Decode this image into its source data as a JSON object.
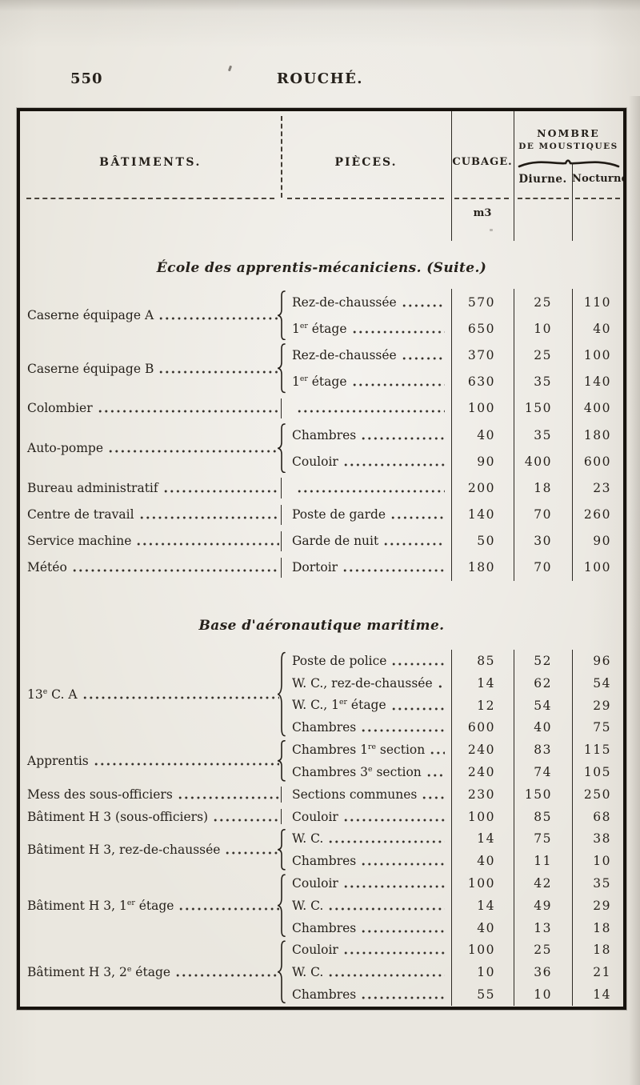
{
  "page": {
    "number": "550",
    "running_title": "ROUCHÉ."
  },
  "colors": {
    "ink": "#26211b",
    "paper": "#e8e5dd",
    "rule": "#2e2a24"
  },
  "table": {
    "headers": {
      "batiments": "BÂTIMENTS.",
      "pieces": "PIÈCES.",
      "cubage": "CUBAGE.",
      "cubage_unit": "m3",
      "nombre_line1": "NOMBRE",
      "nombre_line2": "DE MOUSTIQUES",
      "diurne": "Diurne.",
      "nocturne": "Nocturne."
    },
    "sections": [
      {
        "title": "École des apprentis-mécaniciens. (Suite.)",
        "groups": [
          {
            "batiment": "Caserne équipage A",
            "rows": [
              {
                "piece": "Rez-de-chaussée",
                "cubage": "570",
                "diurne": "25",
                "nocturne": "110"
              },
              {
                "piece": "1er étage",
                "cubage": "650",
                "diurne": "10",
                "nocturne": "40"
              }
            ]
          },
          {
            "batiment": "Caserne équipage B",
            "rows": [
              {
                "piece": "Rez-de-chaussée",
                "cubage": "370",
                "diurne": "25",
                "nocturne": "100"
              },
              {
                "piece": "1er étage",
                "cubage": "630",
                "diurne": "35",
                "nocturne": "140"
              }
            ]
          },
          {
            "batiment": "Colombier",
            "rows": [
              {
                "piece": "",
                "cubage": "100",
                "diurne": "150",
                "nocturne": "400"
              }
            ]
          },
          {
            "batiment": "Auto-pompe",
            "rows": [
              {
                "piece": "Chambres",
                "cubage": "40",
                "diurne": "35",
                "nocturne": "180"
              },
              {
                "piece": "Couloir",
                "cubage": "90",
                "diurne": "400",
                "nocturne": "600"
              }
            ]
          },
          {
            "batiment": "Bureau administratif",
            "rows": [
              {
                "piece": "",
                "cubage": "200",
                "diurne": "18",
                "nocturne": "23"
              }
            ]
          },
          {
            "batiment": "Centre de travail",
            "rows": [
              {
                "piece": "Poste de garde",
                "cubage": "140",
                "diurne": "70",
                "nocturne": "260"
              }
            ]
          },
          {
            "batiment": "Service machine",
            "rows": [
              {
                "piece": "Garde de nuit",
                "cubage": "50",
                "diurne": "30",
                "nocturne": "90"
              }
            ]
          },
          {
            "batiment": "Météo",
            "rows": [
              {
                "piece": "Dortoir",
                "cubage": "180",
                "diurne": "70",
                "nocturne": "100"
              }
            ]
          }
        ]
      },
      {
        "title": "Base d'aéronautique maritime.",
        "groups": [
          {
            "batiment": "13e C. A",
            "rows": [
              {
                "piece": "Poste de police",
                "cubage": "85",
                "diurne": "52",
                "nocturne": "96"
              },
              {
                "piece": "W. C., rez-de-chaussée",
                "cubage": "14",
                "diurne": "62",
                "nocturne": "54"
              },
              {
                "piece": "W. C., 1er étage",
                "cubage": "12",
                "diurne": "54",
                "nocturne": "29"
              },
              {
                "piece": "Chambres",
                "cubage": "600",
                "diurne": "40",
                "nocturne": "75"
              }
            ]
          },
          {
            "batiment": "Apprentis",
            "rows": [
              {
                "piece": "Chambres 1re section",
                "cubage": "240",
                "diurne": "83",
                "nocturne": "115"
              },
              {
                "piece": "Chambres 3e section",
                "cubage": "240",
                "diurne": "74",
                "nocturne": "105"
              }
            ]
          },
          {
            "batiment": "Mess des sous-officiers",
            "rows": [
              {
                "piece": "Sections communes",
                "cubage": "230",
                "diurne": "150",
                "nocturne": "250"
              }
            ]
          },
          {
            "batiment": "Bâtiment H 3 (sous-officiers)",
            "rows": [
              {
                "piece": "Couloir",
                "cubage": "100",
                "diurne": "85",
                "nocturne": "68"
              }
            ]
          },
          {
            "batiment": "Bâtiment H 3, rez-de-chaussée",
            "rows": [
              {
                "piece": "W. C.",
                "cubage": "14",
                "diurne": "75",
                "nocturne": "38"
              },
              {
                "piece": "Chambres",
                "cubage": "40",
                "diurne": "11",
                "nocturne": "10"
              }
            ]
          },
          {
            "batiment": "Bâtiment H 3, 1er étage",
            "rows": [
              {
                "piece": "Couloir",
                "cubage": "100",
                "diurne": "42",
                "nocturne": "35"
              },
              {
                "piece": "W. C.",
                "cubage": "14",
                "diurne": "49",
                "nocturne": "29"
              },
              {
                "piece": "Chambres",
                "cubage": "40",
                "diurne": "13",
                "nocturne": "18"
              }
            ]
          },
          {
            "batiment": "Bâtiment H 3, 2e étage",
            "rows": [
              {
                "piece": "Couloir",
                "cubage": "100",
                "diurne": "25",
                "nocturne": "18"
              },
              {
                "piece": "W. C.",
                "cubage": "10",
                "diurne": "36",
                "nocturne": "21"
              },
              {
                "piece": "Chambres",
                "cubage": "55",
                "diurne": "10",
                "nocturne": "14"
              }
            ]
          }
        ]
      }
    ]
  }
}
